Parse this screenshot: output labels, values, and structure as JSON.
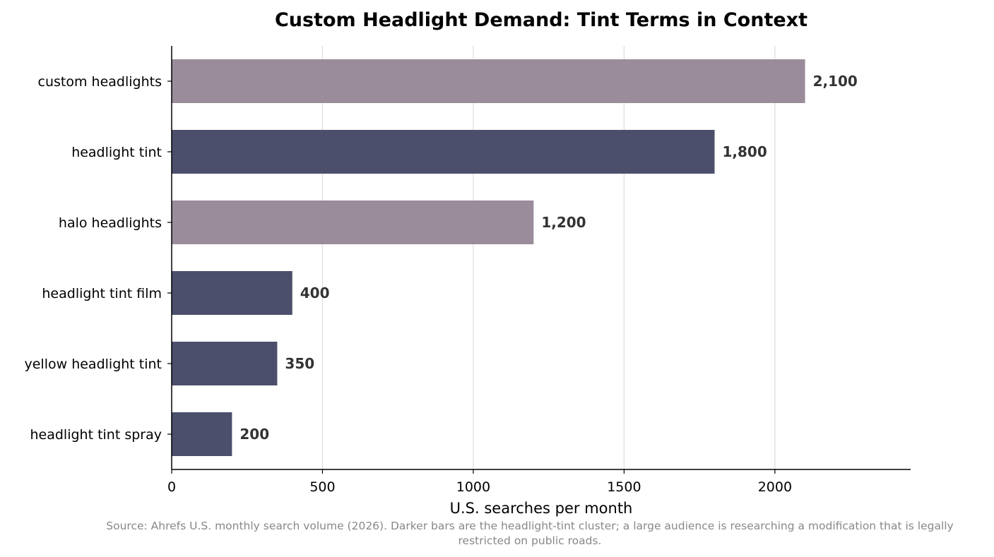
{
  "chart_data": {
    "type": "bar",
    "orientation": "horizontal",
    "title": "Custom Headlight Demand: Tint Terms in Context",
    "xlabel": "U.S. searches per month",
    "ylabel": "",
    "xlim": [
      0,
      2450
    ],
    "xticks": [
      0,
      500,
      1000,
      1500,
      2000
    ],
    "grid": "vertical",
    "categories": [
      "custom headlights",
      "headlight tint",
      "halo headlights",
      "headlight tint film",
      "yellow headlight tint",
      "headlight tint spray"
    ],
    "values": [
      2100,
      1800,
      1200,
      400,
      350,
      200
    ],
    "data_labels": [
      "2,100",
      "1,800",
      "1,200",
      "400",
      "350",
      "200"
    ],
    "highlight": [
      false,
      true,
      false,
      true,
      true,
      true
    ],
    "colors": {
      "highlight": "#4b4f6b",
      "context": "#9a8c9a"
    }
  },
  "footnote": {
    "line1": "Source: Ahrefs U.S. monthly search volume (2026). Darker bars are the headlight-tint cluster; a large audience is researching a modification that is legally",
    "line2": "restricted on public roads."
  }
}
